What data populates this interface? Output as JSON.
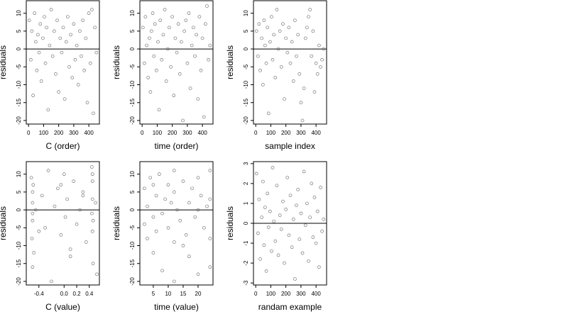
{
  "chart_data": [
    {
      "type": "scatter",
      "xlabel": "C (order)",
      "ylabel": "residuals",
      "xlim": [
        -15,
        470
      ],
      "ylim": [
        -21,
        13.5
      ],
      "xticks": [
        0,
        100,
        200,
        300,
        400
      ],
      "yticks": [
        -20,
        -15,
        -10,
        -5,
        0,
        5,
        10
      ],
      "hline": 0,
      "color": "#555555",
      "x": [
        5,
        15,
        22,
        30,
        40,
        48,
        55,
        62,
        70,
        78,
        85,
        95,
        105,
        112,
        120,
        130,
        140,
        150,
        160,
        170,
        180,
        190,
        200,
        210,
        220,
        230,
        240,
        250,
        260,
        270,
        280,
        290,
        300,
        310,
        320,
        330,
        340,
        350,
        360,
        370,
        380,
        390,
        400,
        410,
        420,
        430,
        440,
        450
      ],
      "y": [
        8,
        -3,
        5,
        -13,
        10,
        2,
        -6,
        4,
        -1,
        7,
        -9,
        3,
        9,
        -4,
        6,
        -17,
        1,
        11,
        -2,
        5,
        -7,
        8,
        -12,
        3,
        -1,
        6,
        -14,
        2,
        9,
        -5,
        4,
        -8,
        7,
        -3,
        1,
        -10,
        5,
        -2,
        8,
        -6,
        3,
        -15,
        10,
        -4,
        11,
        -18,
        6,
        -1
      ]
    },
    {
      "type": "scatter",
      "xlabel": "time (order)",
      "ylabel": "residuals",
      "xlim": [
        -15,
        470
      ],
      "ylim": [
        -21,
        13.5
      ],
      "xticks": [
        0,
        100,
        200,
        300,
        400
      ],
      "yticks": [
        -20,
        -15,
        -10,
        -5,
        0,
        5,
        10
      ],
      "hline": 0,
      "color": "#555555",
      "x": [
        5,
        15,
        22,
        30,
        40,
        48,
        55,
        62,
        70,
        78,
        85,
        95,
        105,
        112,
        120,
        130,
        140,
        150,
        160,
        170,
        180,
        190,
        200,
        210,
        220,
        230,
        240,
        250,
        260,
        270,
        280,
        290,
        300,
        310,
        320,
        330,
        340,
        350,
        360,
        370,
        380,
        390,
        400,
        410,
        420,
        430,
        440,
        450
      ],
      "y": [
        6,
        -4,
        9,
        1,
        -8,
        3,
        -12,
        5,
        10,
        -2,
        7,
        -6,
        2,
        -17,
        8,
        -3,
        4,
        11,
        -9,
        0,
        6,
        -5,
        9,
        -13,
        3,
        -1,
        7,
        -7,
        2,
        -20,
        5,
        8,
        -4,
        10,
        -11,
        1,
        6,
        -2,
        4,
        -14,
        9,
        -6,
        3,
        -19,
        7,
        12,
        -3,
        1
      ]
    },
    {
      "type": "scatter",
      "xlabel": "sample index",
      "ylabel": "residuals",
      "xlim": [
        -15,
        470
      ],
      "ylim": [
        -21,
        13.5
      ],
      "xticks": [
        0,
        100,
        200,
        300,
        400
      ],
      "yticks": [
        -20,
        -15,
        -10,
        -5,
        0,
        5,
        10
      ],
      "hline": 0,
      "color": "#555555",
      "x": [
        5,
        15,
        22,
        30,
        40,
        48,
        55,
        62,
        70,
        78,
        85,
        95,
        105,
        112,
        120,
        130,
        140,
        150,
        160,
        170,
        180,
        190,
        200,
        210,
        220,
        230,
        240,
        250,
        260,
        270,
        280,
        290,
        300,
        310,
        320,
        330,
        340,
        350,
        360,
        370,
        380,
        390,
        400,
        410,
        420,
        430,
        440,
        450
      ],
      "y": [
        5,
        -2,
        7,
        -6,
        3,
        -10,
        8,
        1,
        -4,
        6,
        -18,
        2,
        9,
        -3,
        4,
        -8,
        11,
        0,
        5,
        -5,
        7,
        -14,
        3,
        -1,
        6,
        -4,
        2,
        -9,
        8,
        -2,
        4,
        -7,
        -15,
        -20,
        -11,
        3,
        6,
        9,
        11,
        -2,
        5,
        -12,
        -4,
        -7,
        1,
        -5,
        -3,
        0
      ]
    },
    {
      "type": "scatter",
      "xlabel": "C (value)",
      "ylabel": "residuals",
      "xlim": [
        -0.6,
        0.56
      ],
      "ylim": [
        -21,
        13.5
      ],
      "xticks": [
        -0.4,
        {
          "value": 0,
          "label": "0.0"
        },
        0.2,
        0.4
      ],
      "yticks": [
        -20,
        -15,
        -10,
        -5,
        0,
        5,
        10
      ],
      "hline": 0,
      "color": "#555555",
      "x": [
        -0.52,
        -0.5,
        -0.5,
        -0.48,
        -0.5,
        -0.51,
        -0.49,
        -0.5,
        -0.5,
        -0.35,
        -0.3,
        -0.25,
        -0.2,
        -0.15,
        -0.1,
        -0.05,
        0.0,
        0.02,
        0.05,
        0.1,
        0.15,
        0.2,
        0.25,
        0.3,
        0.35,
        0.44,
        0.45,
        0.45,
        0.46,
        0.45,
        0.44,
        0.5,
        0.52,
        0.45,
        0.46,
        -0.4,
        -0.45,
        0.1,
        -0.05,
        0.3
      ],
      "y": [
        9,
        -3,
        5,
        -12,
        2,
        -8,
        7,
        -1,
        -16,
        4,
        -5,
        11,
        -20,
        1,
        6,
        -7,
        10,
        -2,
        3,
        -13,
        8,
        -4,
        0,
        5,
        -9,
        12,
        -6,
        3,
        -15,
        8,
        -1,
        2,
        -18,
        10,
        -3,
        -6,
        0,
        -11,
        7,
        4
      ]
    },
    {
      "type": "scatter",
      "xlabel": "time (value)",
      "ylabel": "residuals",
      "xlim": [
        0.5,
        25
      ],
      "ylim": [
        -21,
        13.5
      ],
      "xticks": [
        5,
        10,
        15,
        20
      ],
      "yticks": [
        -20,
        -15,
        -10,
        -5,
        0,
        5,
        10
      ],
      "hline": 0,
      "color": "#555555",
      "x": [
        2,
        2,
        3,
        3,
        4,
        5,
        5,
        6,
        6,
        7,
        8,
        8,
        9,
        10,
        10,
        11,
        12,
        12,
        12,
        12,
        13,
        14,
        15,
        16,
        17,
        17,
        18,
        19,
        20,
        20,
        21,
        22,
        23,
        24,
        24,
        24,
        24,
        5,
        15,
        20
      ],
      "y": [
        6,
        -4,
        1,
        -8,
        9,
        -2,
        -12,
        4,
        -6,
        10,
        -1,
        -17,
        3,
        7,
        -5,
        2,
        11,
        -9,
        -20,
        5,
        0,
        -3,
        8,
        -7,
        2,
        -13,
        6,
        -2,
        9,
        -18,
        4,
        -5,
        1,
        11,
        -8,
        3,
        -16,
        7,
        -10,
        0
      ]
    },
    {
      "type": "scatter",
      "xlabel": "randam example",
      "ylabel": "residuals",
      "xlim": [
        -15,
        470
      ],
      "ylim": [
        -3.1,
        3.1
      ],
      "xticks": [
        0,
        100,
        200,
        300,
        400
      ],
      "yticks": [
        -3,
        -2,
        -1,
        0,
        1,
        2,
        3
      ],
      "hline": 0,
      "color": "#555555",
      "x": [
        5,
        15,
        22,
        30,
        40,
        48,
        55,
        62,
        70,
        78,
        85,
        95,
        105,
        112,
        120,
        130,
        140,
        150,
        160,
        170,
        180,
        190,
        200,
        210,
        220,
        230,
        240,
        250,
        260,
        270,
        280,
        290,
        300,
        310,
        320,
        330,
        340,
        350,
        360,
        370,
        380,
        390,
        400,
        410,
        420,
        430,
        440,
        450
      ],
      "y": [
        2.5,
        -0.5,
        1.2,
        -1.8,
        0.3,
        2.1,
        -1.1,
        0.8,
        -2.4,
        1.5,
        -0.2,
        0.6,
        -1.4,
        2.8,
        0.1,
        -0.9,
        1.9,
        -1.6,
        0.4,
        -0.3,
        1.1,
        -2.0,
        0.7,
        2.3,
        -0.6,
        1.4,
        -1.2,
        0.2,
        -2.8,
        0.9,
        1.7,
        -0.8,
        0.5,
        -1.5,
        2.6,
        -0.1,
        1.0,
        -1.9,
        0.3,
        2.0,
        -0.7,
        1.3,
        -1.0,
        0.6,
        -2.2,
        1.8,
        -0.4,
        0.2
      ]
    }
  ]
}
